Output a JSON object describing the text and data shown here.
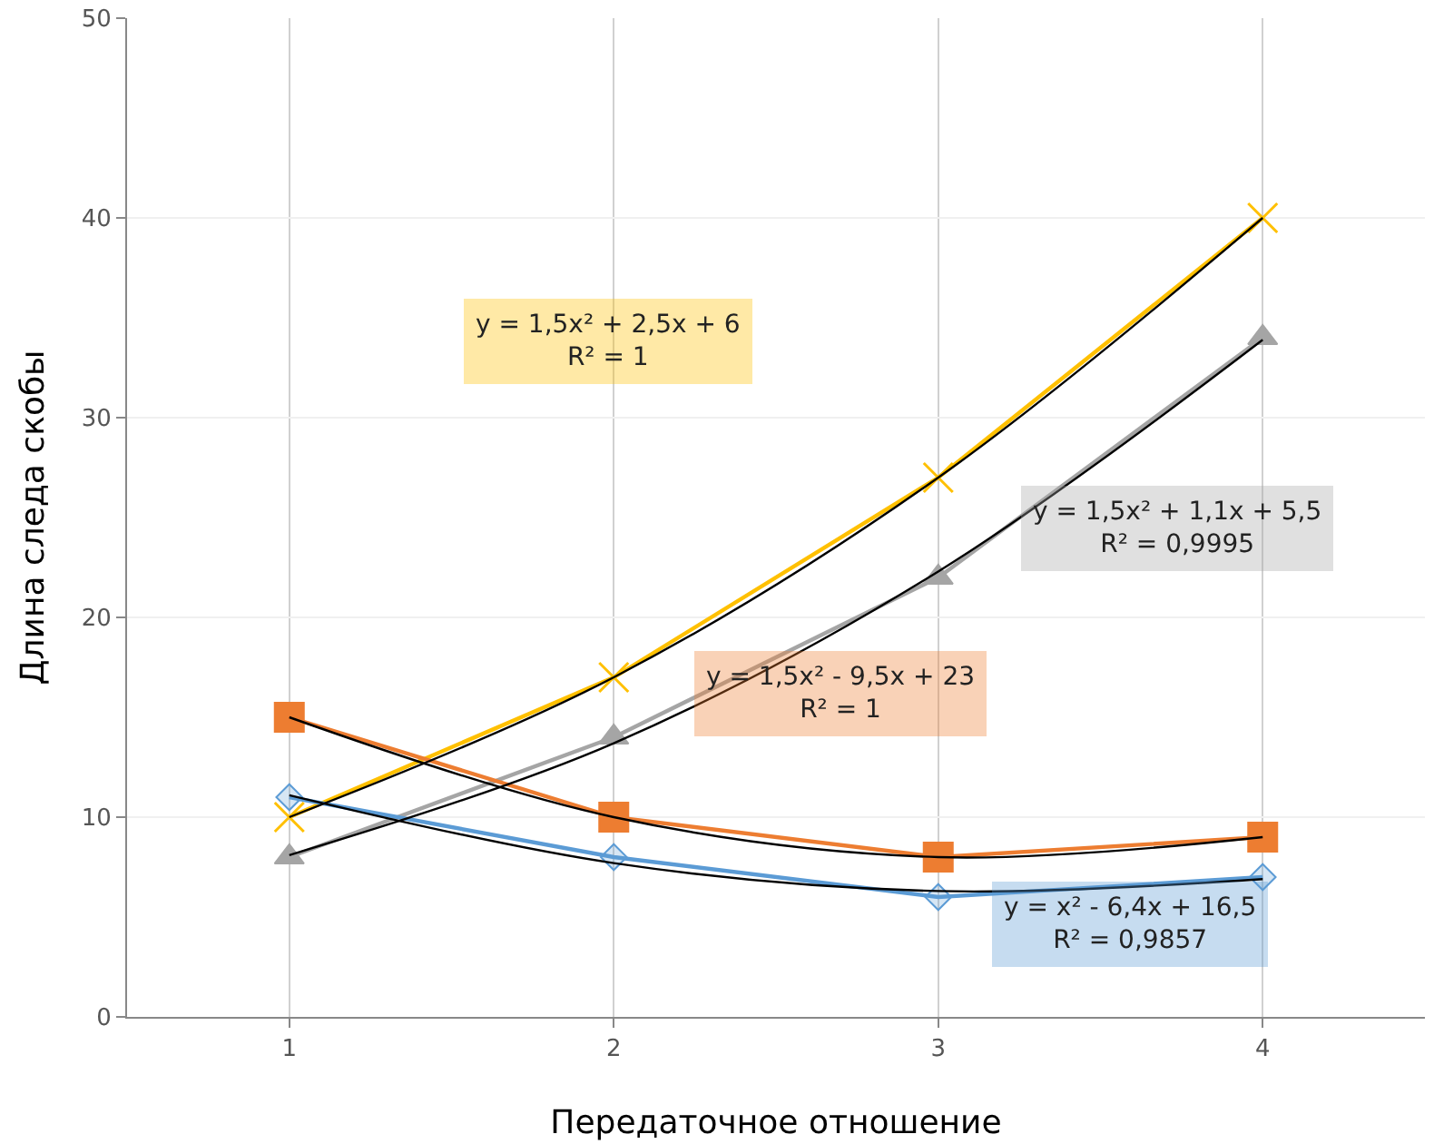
{
  "chart_data": {
    "type": "line",
    "xlabel": "Передаточное отношение",
    "ylabel": "Длина следа скобы",
    "x": [
      1,
      2,
      3,
      4
    ],
    "xlim": [
      0.5,
      4.5
    ],
    "xticks": [
      1,
      2,
      3,
      4
    ],
    "ylim": [
      0,
      50
    ],
    "yticks": [
      0,
      10,
      20,
      30,
      40,
      50
    ],
    "grid": true,
    "series": [
      {
        "color": "#ffc000",
        "marker": "cross",
        "values": [
          10,
          17,
          27,
          40
        ]
      },
      {
        "color": "#a5a5a5",
        "marker": "triangle",
        "values": [
          8,
          14,
          22,
          34
        ]
      },
      {
        "color": "#ed7d31",
        "marker": "square",
        "values": [
          15,
          10,
          8,
          9
        ]
      },
      {
        "color": "#5b9bd5",
        "marker": "diamond",
        "values": [
          11,
          8,
          6,
          7
        ]
      },
      {
        "color": "#000000",
        "marker": "none",
        "values": [
          10,
          17,
          27,
          40
        ]
      },
      {
        "color": "#000000",
        "marker": "none",
        "values": [
          8.1,
          13.7,
          22.3,
          33.9
        ]
      },
      {
        "color": "#000000",
        "marker": "none",
        "values": [
          15,
          10,
          8,
          9
        ]
      },
      {
        "color": "#000000",
        "marker": "none",
        "values": [
          11.1,
          7.7,
          6.3,
          6.9
        ]
      }
    ],
    "annotations": [
      "y = 1,5x² + 2,5x + 6\nR² = 1",
      "y = 1,5x² + 1,1x + 5,5\nR² = 0,9995",
      "y = 1,5x² - 9,5x + 23\nR² = 1",
      "y = x² - 6,4x + 16,5\nR² = 0,9857"
    ]
  }
}
